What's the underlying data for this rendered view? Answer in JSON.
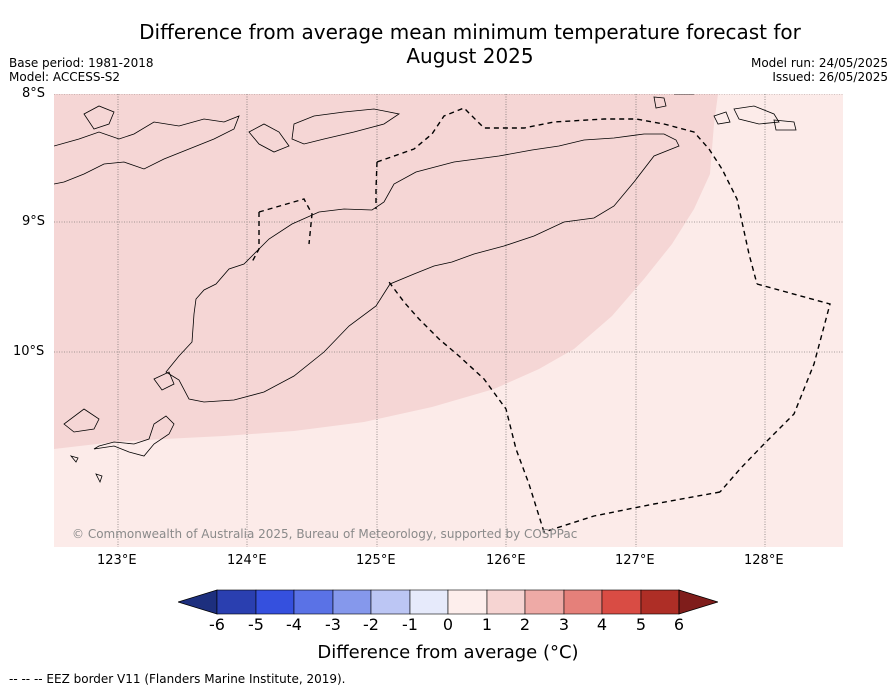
{
  "title_line1": "Difference from average mean minimum temperature forecast for",
  "title_line2": "August 2025",
  "base_period": "Base period: 1981-2018",
  "model": "Model: ACCESS-S2",
  "model_run": "Model run: 24/05/2025",
  "issued": "Issued: 26/05/2025",
  "lat_labels": [
    "8°S",
    "9°S",
    "10°S"
  ],
  "lon_labels": [
    "123°E",
    "124°E",
    "125°E",
    "126°E",
    "127°E",
    "128°E"
  ],
  "copyright": "© Commonwealth of Australia 2025, Bureau of Meteorology, supported by COSPPac",
  "colorbar": {
    "ticks": [
      "-6",
      "-5",
      "-4",
      "-3",
      "-2",
      "-1",
      "0",
      "1",
      "2",
      "3",
      "4",
      "5",
      "6"
    ],
    "label": "Difference from average (°C)",
    "colors": [
      "#1d2f7e",
      "#2a3fb0",
      "#3550de",
      "#5a72e6",
      "#8598ec",
      "#bcc6f4",
      "#e6eafb",
      "#fdeeec",
      "#f6d4d2",
      "#eeaaa6",
      "#e5807a",
      "#d94c44",
      "#ae2e26",
      "#7f1d1b"
    ]
  },
  "map": {
    "band_colors": {
      "0_to_1": "#fcebe9",
      "1_to_2": "#f5d6d5"
    },
    "eez_style": "dashed black"
  },
  "footnote": "--  --  -- EEZ border V11 (Flanders Marine Institute, 2019)."
}
